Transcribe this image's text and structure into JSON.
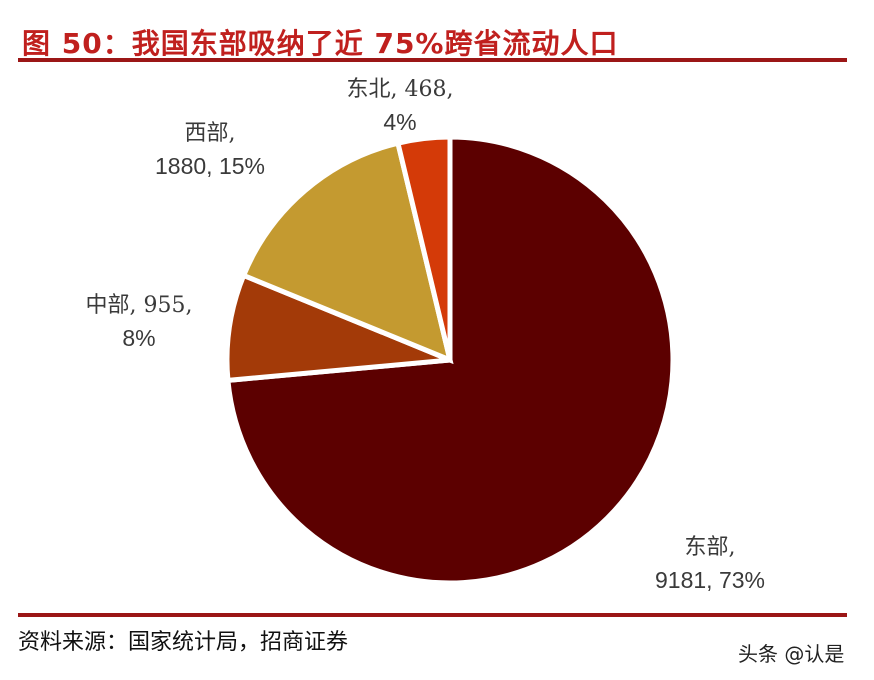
{
  "title": "图 50：我国东部吸纳了近 75%跨省流动人口",
  "source": "资料来源：国家统计局，招商证券",
  "watermark": "头条 @认是",
  "colors": {
    "title": "#C0201E",
    "rule": "#9B1616",
    "east": "#5C0000",
    "central": "#A33A08",
    "west": "#C49A30",
    "northeast": "#D43A08"
  },
  "labels": {
    "east": {
      "line1": "东部,",
      "line2": "9181, 73%"
    },
    "central": {
      "line1": "中部, 955,",
      "line2": "8%"
    },
    "west": {
      "line1": "西部,",
      "line2": "1880, 15%"
    },
    "northeast": {
      "line1": "东北, 468,",
      "line2": "4%"
    }
  },
  "chart_data": {
    "type": "pie",
    "title": "图 50：我国东部吸纳了近 75%跨省流动人口",
    "categories": [
      "东部",
      "中部",
      "西部",
      "东北"
    ],
    "values": [
      9181,
      955,
      1880,
      468
    ],
    "percentages": [
      73,
      8,
      15,
      4
    ],
    "colors": [
      "#5C0000",
      "#A33A08",
      "#C49A30",
      "#D43A08"
    ],
    "start_angle": "12 o'clock, clockwise",
    "legend": "none (data labels outside slices)",
    "source": "资料来源：国家统计局，招商证券"
  }
}
